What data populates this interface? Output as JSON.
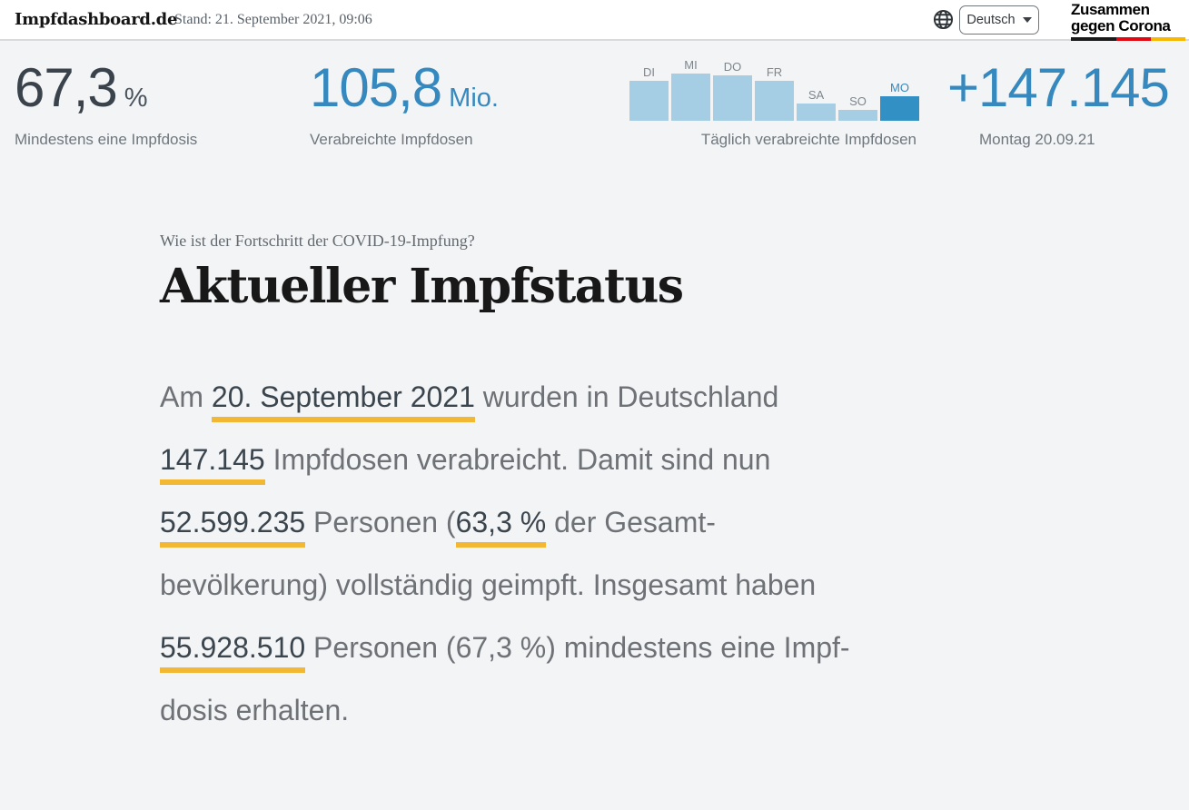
{
  "header": {
    "logo": "Impfdashboard.de",
    "stand": "Stand: 21. September 2021, 09:06",
    "language": {
      "selected": "Deutsch"
    },
    "campaign_logo": {
      "line1": "Zusammen",
      "line2": "gegen Corona"
    }
  },
  "stats": {
    "first_dose": {
      "value": "67,3",
      "unit": "%",
      "label": "Mindestens eine Impfdosis"
    },
    "total_doses": {
      "value": "105,8",
      "unit": "Mio.",
      "label": "Verabreichte Impfdosen"
    },
    "daily_chart": {
      "label": "Täglich verabreichte Impfdosen"
    },
    "daily_new": {
      "value": "+147.145",
      "label": "Montag 20.09.21"
    }
  },
  "chart_data": {
    "type": "bar",
    "title": "Täglich verabreichte Impfdosen",
    "categories": [
      "DI",
      "MI",
      "DO",
      "FR",
      "SA",
      "SO",
      "MO"
    ],
    "values": [
      44,
      52,
      50,
      44,
      19,
      12,
      27
    ],
    "value_unit": "relative bar height in px (no numeric axis shown; MO corresponds to +147.145 doses)",
    "highlight_index": 6,
    "bar_color": "#a5cee5",
    "highlight_color": "#3390c4",
    "legend_position": "none",
    "grid": false
  },
  "article": {
    "kicker": "Wie ist der Fortschritt der COVID-19-Impfung?",
    "title": "Aktueller Impfstatus",
    "lines": [
      [
        {
          "text": "Am ",
          "hl": false
        },
        {
          "text": "20. September 2021",
          "hl": true
        },
        {
          "text": " wurden in Deutschland",
          "hl": false
        }
      ],
      [
        {
          "text": "147.145",
          "hl": true
        },
        {
          "text": " Impfdosen verabreicht. Damit sind nun",
          "hl": false
        }
      ],
      [
        {
          "text": "52.599.235",
          "hl": true
        },
        {
          "text": " Personen (",
          "hl": false
        },
        {
          "text": "63,3 %",
          "hl": true
        },
        {
          "text": " der Gesamt-",
          "hl": false
        }
      ],
      [
        {
          "text": "bevölkerung) vollständig geimpft. Insgesamt haben",
          "hl": false
        }
      ],
      [
        {
          "text": "55.928.510",
          "hl": true
        },
        {
          "text": " Personen (67,3 %) mindestens eine Impf-",
          "hl": false
        }
      ],
      [
        {
          "text": "dosis erhalten.",
          "hl": false
        }
      ]
    ]
  },
  "colors": {
    "accent_blue": "#3589be",
    "bar_light_blue": "#a5cee5",
    "bar_dark_blue": "#3390c4",
    "underline_yellow": "#f2b733",
    "dark_number": "#3a434b",
    "body_gray": "#6e7175",
    "flag_black": "#1a1a1a",
    "flag_red": "#e30613",
    "flag_gold": "#f6b800",
    "page_background": "#f3f4f6",
    "header_background": "#ffffff"
  }
}
